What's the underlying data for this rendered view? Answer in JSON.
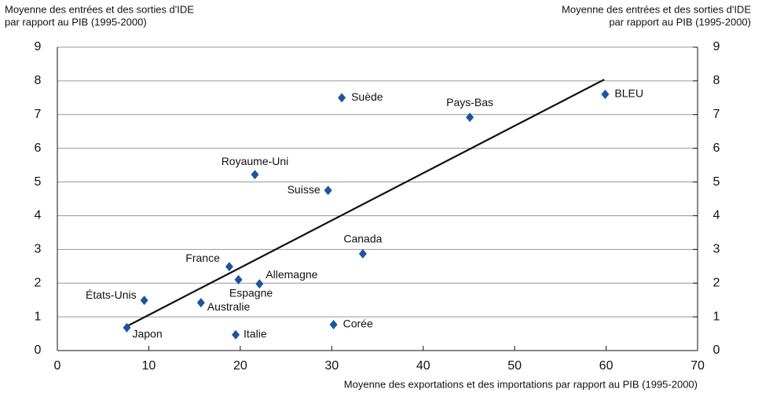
{
  "chart_data": {
    "type": "scatter",
    "y_title_lines": [
      "Moyenne des entrées et des sorties d'IDE",
      "par rapport au PIB (1995-2000)"
    ],
    "y2_title_lines": [
      "Moyenne des entrées et des sorties d'IDE",
      "par rapport au PIB (1995-2000)"
    ],
    "x_title": "Moyenne des exportations et des importations par rapport au PIB (1995-2000)",
    "labels": [
      "Suède",
      "Pays-Bas",
      "BLEU",
      "Royaume-Uni",
      "Suisse",
      "Canada",
      "France",
      "Espagne",
      "Allemagne",
      "États-Unis",
      "Australie",
      "Japon",
      "Italie",
      "Corée"
    ],
    "x": [
      31.1,
      45.1,
      59.9,
      21.6,
      29.6,
      33.4,
      18.8,
      19.8,
      22.1,
      9.5,
      15.7,
      7.6,
      19.5,
      30.2
    ],
    "y": [
      7.5,
      6.92,
      7.6,
      5.22,
      4.75,
      2.87,
      2.49,
      2.1,
      1.98,
      1.49,
      1.42,
      0.68,
      0.47,
      0.77
    ],
    "color": "#1a55a0",
    "trend_line": {
      "x": [
        7.6,
        59.8
      ],
      "y": [
        0.72,
        8.04
      ],
      "color": "#111111"
    },
    "xlim": [
      0,
      70
    ],
    "xticks": [
      0,
      10,
      20,
      30,
      40,
      50,
      60,
      70
    ],
    "ylim": [
      0,
      9
    ],
    "yticks": [
      0,
      1,
      2,
      3,
      4,
      5,
      6,
      7,
      8,
      9
    ],
    "y2lim": [
      0,
      9
    ],
    "y2ticks": [
      0,
      1,
      2,
      3,
      4,
      5,
      6,
      7,
      8,
      9
    ],
    "grid": true
  }
}
